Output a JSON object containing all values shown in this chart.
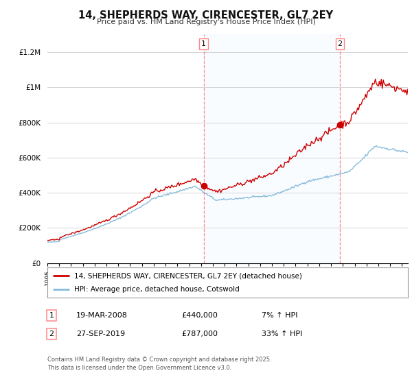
{
  "title": "14, SHEPHERDS WAY, CIRENCESTER, GL7 2EY",
  "subtitle": "Price paid vs. HM Land Registry's House Price Index (HPI)",
  "sale1_date_num": 2008.22,
  "sale1_price": 440000,
  "sale1_label": "1",
  "sale1_text": "19-MAR-2008",
  "sale1_pct": "7% ↑ HPI",
  "sale2_date_num": 2019.74,
  "sale2_price": 787000,
  "sale2_label": "2",
  "sale2_text": "27-SEP-2019",
  "sale2_pct": "33% ↑ HPI",
  "legend_line1": "14, SHEPHERDS WAY, CIRENCESTER, GL7 2EY (detached house)",
  "legend_line2": "HPI: Average price, detached house, Cotswold",
  "footer1": "Contains HM Land Registry data © Crown copyright and database right 2025.",
  "footer2": "This data is licensed under the Open Government Licence v3.0.",
  "red_color": "#cc0000",
  "blue_color": "#88bbdd",
  "vline_color": "#ff8888",
  "bg_color": "#ffffff",
  "plot_bg": "#ffffff",
  "grid_color": "#cccccc",
  "ylim_max": 1300000,
  "ylim_min": 0,
  "xstart": 1995,
  "xend": 2025.5
}
